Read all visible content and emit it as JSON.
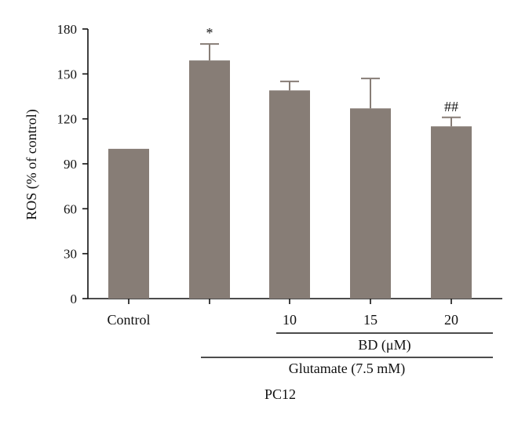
{
  "chart_data": {
    "type": "bar",
    "ylabel": "ROS (% of control)",
    "ylim": [
      0,
      180
    ],
    "yticks": [
      "0",
      "30",
      "60",
      "90",
      "120",
      "150",
      "180"
    ],
    "categories": [
      "Control",
      "",
      "10",
      "15",
      "20"
    ],
    "values": [
      100,
      159,
      139,
      127,
      115
    ],
    "errors": [
      0,
      11,
      6,
      20,
      6
    ],
    "annotations": [
      "",
      "*",
      "",
      "",
      "##"
    ],
    "bar_color": "#877d76",
    "grid": false,
    "groups": {
      "bd": "BD (μM)",
      "glutamate": "Glutamate (7.5 mM)",
      "cell_line": "PC12"
    }
  }
}
